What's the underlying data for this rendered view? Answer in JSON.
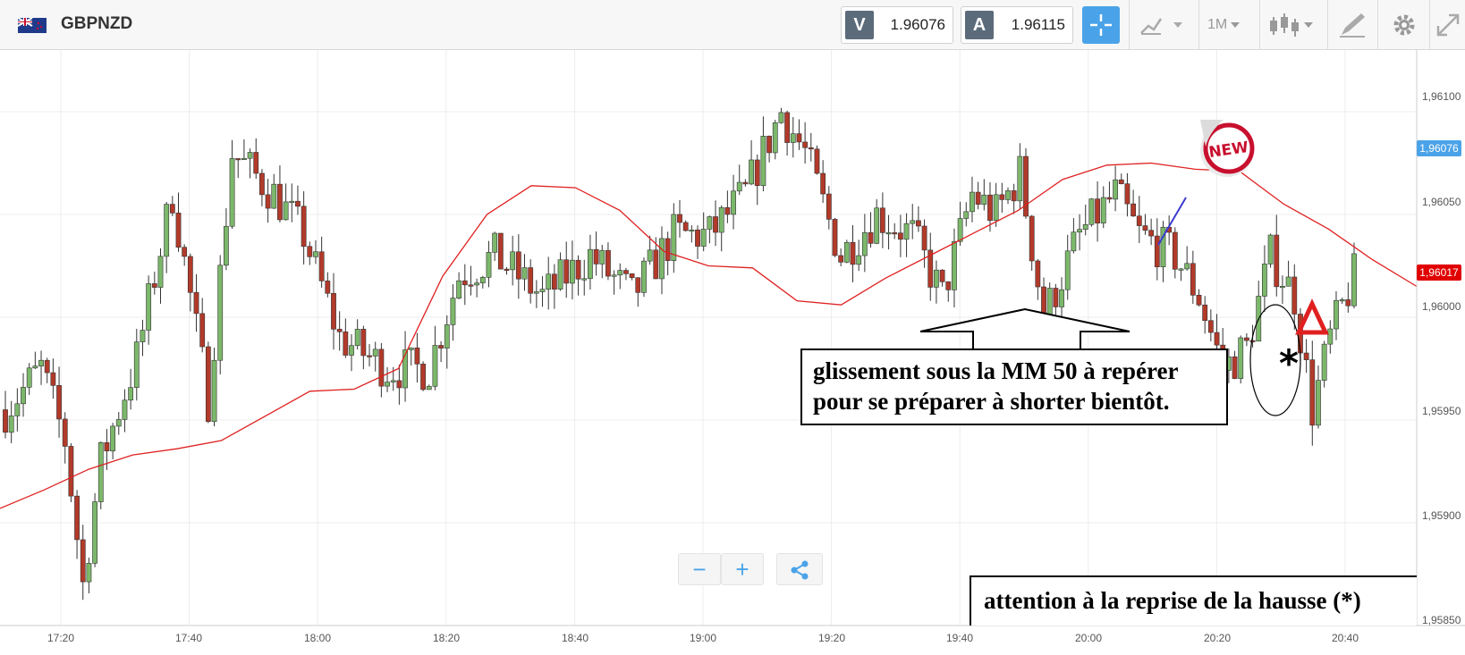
{
  "instrument": {
    "symbol": "GBPNZD",
    "flag_icon": "uk-nz-flag-icon"
  },
  "quotes": {
    "sell": {
      "letter": "V",
      "value": "1.96076"
    },
    "buy": {
      "letter": "A",
      "value": "1.96115"
    }
  },
  "toolbar": {
    "crosshair_icon": "crosshair-icon",
    "indicators_icon": "line-chart-icon",
    "timeframe": "1M",
    "chart_type_icon": "candlestick-icon",
    "drawing_icon": "pencil-icon",
    "settings_icon": "gear-icon",
    "fullscreen_icon": "expand-icon"
  },
  "chart": {
    "colors": {
      "up": "#7cb86b",
      "down": "#b23a2a",
      "ma": "#e02020",
      "grid": "#ececec",
      "current_tag": "#4aa3e8",
      "ma_tag": "#e00000"
    },
    "y_ticks": [
      "1,96100",
      "1,96050",
      "1,96000",
      "1,95950",
      "1,95900",
      "1,95850"
    ],
    "x_ticks": [
      "17:20",
      "17:40",
      "18:00",
      "18:20",
      "18:40",
      "19:00",
      "19:20",
      "19:40",
      "20:00",
      "20:20",
      "20:40"
    ],
    "current_price_label": "1,96076",
    "ma_price_label": "1,96017"
  },
  "chart_data": {
    "type": "candlestick",
    "timeframe": "1M",
    "ylim": [
      1.9585,
      1.9613
    ],
    "y_ticks": [
      1.961,
      1.9605,
      1.96,
      1.9595,
      1.959,
      1.9585
    ],
    "x_ticks": [
      "17:20",
      "17:40",
      "18:00",
      "18:20",
      "18:40",
      "19:00",
      "19:20",
      "19:40",
      "20:00",
      "20:20",
      "20:40"
    ],
    "ma_50": [
      1.95907,
      1.95916,
      1.95926,
      1.95933,
      1.95936,
      1.9594,
      1.95952,
      1.95964,
      1.95965,
      1.95975,
      1.9602,
      1.9605,
      1.96064,
      1.96063,
      1.96052,
      1.96032,
      1.96025,
      1.96024,
      1.96008,
      1.96006,
      1.96019,
      1.9603,
      1.96041,
      1.96052,
      1.96067,
      1.96074,
      1.96075,
      1.96072,
      1.96071,
      1.96055,
      1.96043,
      1.96028,
      1.96015
    ],
    "markers": [
      {
        "label": "*",
        "x": "20:29"
      },
      {
        "label": "NEW",
        "x": "20:16"
      }
    ],
    "annotations": [
      "glissement sous la MM 50 à repérer pour se préparer à shorter bientôt.",
      "attention à la reprise de la hausse (*)"
    ]
  },
  "zoom": {
    "minus": "−",
    "plus": "+",
    "share_icon": "share-icon"
  },
  "annotations": {
    "slide_line1": "glissement sous la MM 50 à repérer",
    "slide_line2": "pour se préparer à shorter bientôt.",
    "resume": "attention à la reprise de la hausse (*)"
  },
  "new_badge": "NEW"
}
